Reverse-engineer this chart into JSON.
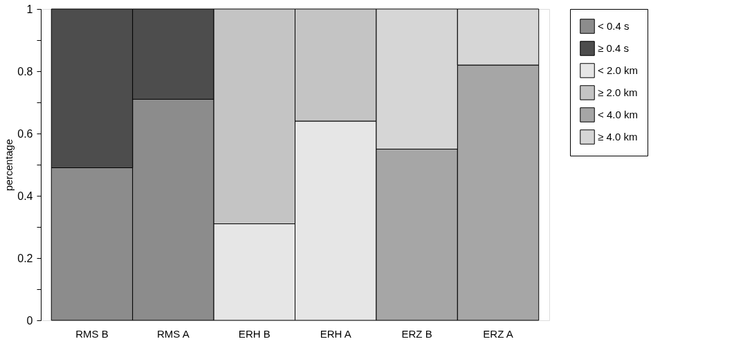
{
  "chart_data": {
    "type": "bar",
    "stacked": true,
    "ylabel": "percentage",
    "categories": [
      "RMS B",
      "RMS A",
      "ERH B",
      "ERH A",
      "ERZ B",
      "ERZ A"
    ],
    "series": [
      {
        "name": "< 0.4 s",
        "color": "#8c8c8c",
        "values": [
          0.49,
          0.71,
          null,
          null,
          null,
          null
        ]
      },
      {
        "name": "≥ 0.4 s",
        "color": "#4d4d4d",
        "values": [
          0.51,
          0.29,
          null,
          null,
          null,
          null
        ]
      },
      {
        "name": "< 2.0 km",
        "color": "#e6e6e6",
        "values": [
          null,
          null,
          0.31,
          0.64,
          null,
          null
        ]
      },
      {
        "name": "≥ 2.0 km",
        "color": "#c4c4c4",
        "values": [
          null,
          null,
          0.69,
          0.36,
          null,
          null
        ]
      },
      {
        "name": "< 4.0 km",
        "color": "#a6a6a6",
        "values": [
          null,
          null,
          null,
          null,
          0.55,
          0.82
        ]
      },
      {
        "name": "≥ 4.0 km",
        "color": "#d6d6d6",
        "values": [
          null,
          null,
          null,
          null,
          0.45,
          0.18
        ]
      }
    ],
    "ylim": [
      0,
      1
    ],
    "yticks": [
      0,
      {
        "value": 0.1,
        "label": null
      },
      0.2,
      {
        "value": 0.3,
        "label": null
      },
      0.4,
      {
        "value": 0.5,
        "label": null
      },
      0.6,
      {
        "value": 0.7,
        "label": null
      },
      0.8,
      {
        "value": 0.9,
        "label": null
      },
      1
    ],
    "grid": false,
    "legend": "top right"
  }
}
